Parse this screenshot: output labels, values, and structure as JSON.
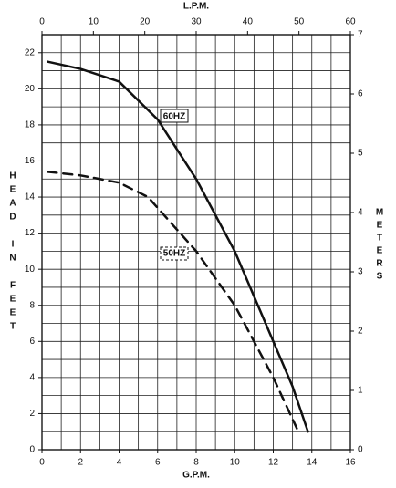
{
  "chart_data": {
    "type": "line",
    "title": "",
    "xlabel": "G.P.M.",
    "ylabel": "HEAD IN FEET",
    "secondary_xlabel": "L.P.M.",
    "secondary_ylabel": "METERS",
    "xlim": [
      0,
      16
    ],
    "ylim": [
      0,
      23
    ],
    "secondary_xlim": [
      0,
      60
    ],
    "secondary_ylim": [
      0,
      7
    ],
    "x_ticks": [
      0,
      2,
      4,
      6,
      8,
      10,
      12,
      14,
      16
    ],
    "y_ticks": [
      0,
      2,
      4,
      6,
      8,
      10,
      12,
      14,
      16,
      18,
      20,
      22
    ],
    "secondary_x_ticks": [
      0,
      10,
      20,
      30,
      40,
      50,
      60
    ],
    "secondary_y_ticks": [
      0,
      1,
      2,
      3,
      4,
      5,
      6,
      7
    ],
    "grid": true,
    "series": [
      {
        "name": "60HZ",
        "line_style": "solid",
        "color": "#111111",
        "x": [
          0.3,
          2.0,
          4.0,
          6.0,
          8.0,
          10.0,
          12.0,
          13.0,
          13.8
        ],
        "values": [
          21.5,
          21.1,
          20.4,
          18.3,
          15.0,
          11.0,
          6.0,
          3.5,
          1.0
        ]
      },
      {
        "name": "50HZ",
        "line_style": "dashed",
        "color": "#111111",
        "x": [
          0.3,
          2.0,
          4.0,
          5.5,
          7.0,
          8.0,
          10.0,
          12.0,
          13.3
        ],
        "values": [
          15.4,
          15.2,
          14.8,
          14.0,
          12.2,
          11.0,
          8.0,
          4.0,
          1.0
        ]
      }
    ]
  }
}
